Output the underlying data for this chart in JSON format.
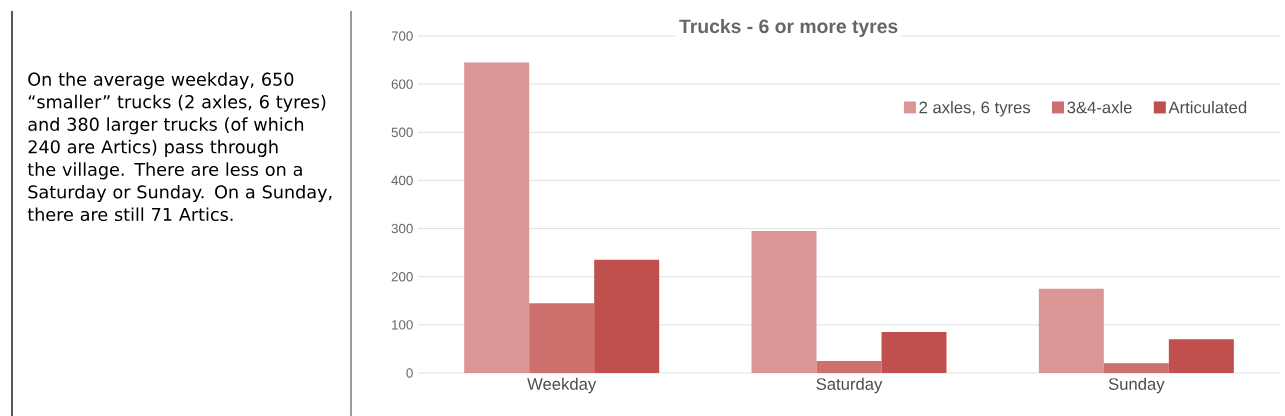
{
  "chart_data": {
    "type": "bar",
    "title": "Trucks - 6 or more tyres",
    "categories": [
      "Weekday",
      "Saturday",
      "Sunday"
    ],
    "series": [
      {
        "name": "2 axles, 6 tyres",
        "color": "#d99694",
        "values": [
          645,
          295,
          175
        ]
      },
      {
        "name": "3&4-axle",
        "color": "#cd6f6c",
        "values": [
          145,
          25,
          20
        ]
      },
      {
        "name": "Articulated",
        "color": "#c0504d",
        "values": [
          235,
          85,
          70
        ]
      }
    ],
    "ylim": [
      0,
      700
    ],
    "yticks": [
      0,
      100,
      200,
      300,
      400,
      500,
      600,
      700
    ],
    "grid": "y",
    "legend": "top right",
    "annotations": [
      "On the average weekday, 650 “smaller” trucks (2 axles, 6 tyres) and 380 larger trucks (of which 240 are Artics) pass through the village. There are less on a Saturday or Sunday. On a Sunday, there are still 71 Artics."
    ]
  }
}
